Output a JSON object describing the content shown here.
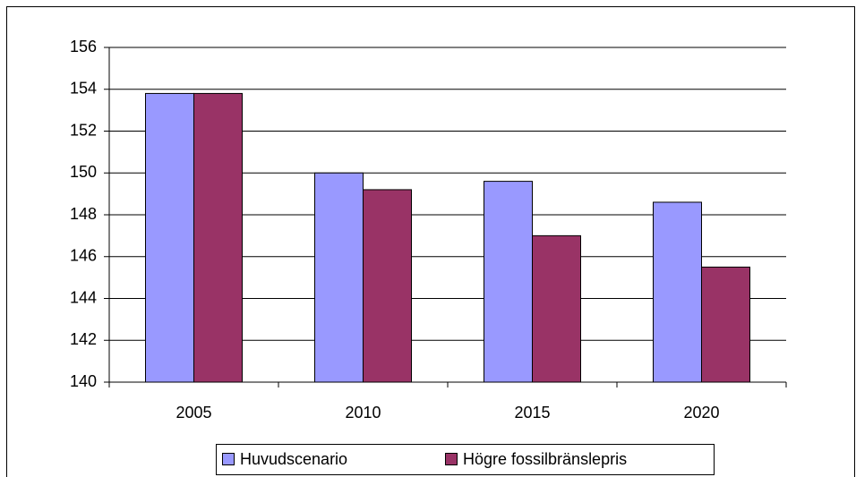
{
  "chart_data": {
    "type": "bar",
    "categories": [
      "2005",
      "2010",
      "2015",
      "2020"
    ],
    "series": [
      {
        "name": "Huvudscenario",
        "color": "#9999ff",
        "values": [
          153.8,
          150.0,
          149.6,
          148.6
        ]
      },
      {
        "name": "Högre fossilbränslepris",
        "color": "#993366",
        "values": [
          153.8,
          149.2,
          147.0,
          145.5
        ]
      }
    ],
    "ylim": [
      140,
      156
    ],
    "yticks": [
      140,
      142,
      144,
      146,
      148,
      150,
      152,
      154,
      156
    ],
    "grid": true,
    "legend": "bottom"
  }
}
